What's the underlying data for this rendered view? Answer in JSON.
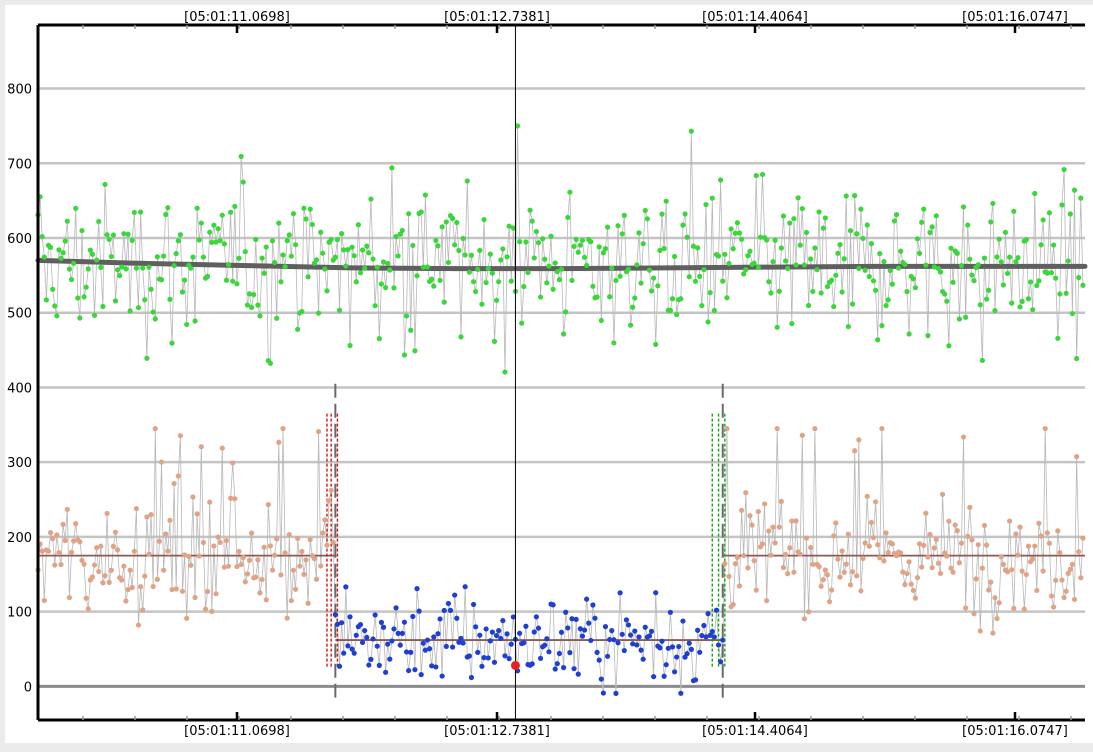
{
  "chart_data": {
    "type": "scatter",
    "x_ticks": [
      "[05:01:11.0698]",
      "[05:01:12.7381]",
      "[05:01:14.4064]",
      "[05:01:16.0747]"
    ],
    "y_ticks": [
      "0",
      "100",
      "200",
      "300",
      "400",
      "500",
      "600",
      "700",
      "800"
    ],
    "ylim": [
      -45,
      885
    ],
    "xlim": [
      0,
      500
    ],
    "grid": true,
    "colors": {
      "green_series": "#3ad63a",
      "salmon_series": "#e0a385",
      "blue_series": "#1f3fd1",
      "trend": "#5f5f5f",
      "baseline": "#8b5a55",
      "marker": "#e82020",
      "red_guides": "#c81818",
      "green_guides": "#17a217"
    },
    "cursor_x": 228,
    "marker_point": {
      "x": 228,
      "y": 28
    },
    "segments": {
      "start_x": 142,
      "end_x": 327,
      "left_level": 175,
      "middle_level": 62,
      "right_level": 175
    },
    "red_guides_x": [
      138,
      140,
      143
    ],
    "green_guides_x": [
      322,
      325,
      328
    ],
    "trend_line": [
      {
        "x": 0,
        "y": 570
      },
      {
        "x": 50,
        "y": 566
      },
      {
        "x": 100,
        "y": 563
      },
      {
        "x": 150,
        "y": 560
      },
      {
        "x": 200,
        "y": 559
      },
      {
        "x": 250,
        "y": 559
      },
      {
        "x": 300,
        "y": 560
      },
      {
        "x": 350,
        "y": 561
      },
      {
        "x": 400,
        "y": 562
      },
      {
        "x": 450,
        "y": 562
      },
      {
        "x": 500,
        "y": 562
      }
    ]
  }
}
